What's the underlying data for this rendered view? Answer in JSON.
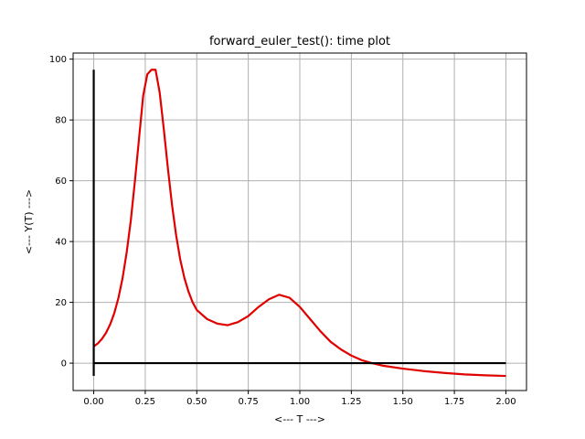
{
  "chart_data": {
    "type": "line",
    "title": "forward_euler_test(): time plot",
    "xlabel": "<--- T --->",
    "ylabel": "<--- Y(T) --->",
    "xlim": [
      -0.1,
      2.1
    ],
    "ylim": [
      -9,
      102
    ],
    "grid": true,
    "xticks": [
      0.0,
      0.25,
      0.5,
      0.75,
      1.0,
      1.25,
      1.5,
      1.75,
      2.0
    ],
    "xtick_labels": [
      "0.00",
      "0.25",
      "0.50",
      "0.75",
      "1.00",
      "1.25",
      "1.50",
      "1.75",
      "2.00"
    ],
    "yticks": [
      0,
      20,
      40,
      60,
      80,
      100
    ],
    "ytick_labels": [
      "0",
      "20",
      "40",
      "60",
      "80",
      "100"
    ],
    "series": [
      {
        "color": "#e00000",
        "x": [
          0.0,
          0.02,
          0.04,
          0.06,
          0.08,
          0.1,
          0.12,
          0.14,
          0.16,
          0.18,
          0.2,
          0.22,
          0.24,
          0.26,
          0.28,
          0.3,
          0.32,
          0.34,
          0.36,
          0.38,
          0.4,
          0.42,
          0.44,
          0.46,
          0.48,
          0.5,
          0.55,
          0.6,
          0.65,
          0.7,
          0.75,
          0.8,
          0.85,
          0.9,
          0.95,
          1.0,
          1.05,
          1.1,
          1.15,
          1.2,
          1.25,
          1.3,
          1.35,
          1.4,
          1.5,
          1.6,
          1.7,
          1.8,
          1.9,
          2.0
        ],
        "y": [
          5.5,
          6.5,
          8.0,
          10.0,
          12.8,
          16.5,
          21.5,
          28.0,
          36.5,
          47.0,
          60.0,
          74.0,
          88.0,
          95.0,
          96.5,
          96.5,
          89.0,
          77.0,
          64.0,
          52.0,
          42.0,
          34.0,
          28.0,
          23.5,
          20.0,
          17.5,
          14.5,
          13.0,
          12.5,
          13.5,
          15.5,
          18.5,
          21.0,
          22.5,
          21.5,
          18.5,
          14.5,
          10.5,
          7.0,
          4.5,
          2.5,
          1.0,
          0.0,
          -0.8,
          -1.8,
          -2.6,
          -3.2,
          -3.7,
          -4.0,
          -4.2
        ]
      },
      {
        "color": "#000000",
        "x": [
          0.0,
          2.0
        ],
        "y": [
          0.0,
          0.0
        ]
      },
      {
        "color": "#000000",
        "x": [
          0.0,
          0.0
        ],
        "y": [
          -4.2,
          96.5
        ]
      }
    ]
  }
}
